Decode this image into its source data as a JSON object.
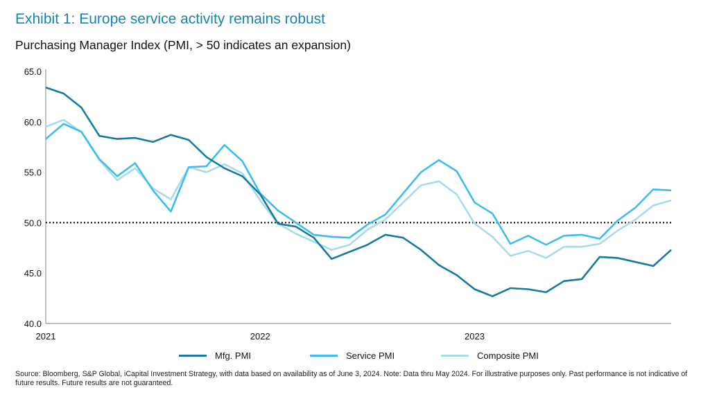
{
  "title": "Exhibit 1: Europe service activity remains robust",
  "subtitle": "Purchasing Manager Index (PMI, > 50 indicates an expansion)",
  "source": "Source: Bloomberg, S&P Global, iCapital Investment Strategy, with data based on availability as of June 3, 2024. Note: Data thru May 2024. For illustrative purposes only. Past performance is not indicative of future results. Future results are not guaranteed.",
  "chart_data": {
    "type": "line",
    "title": "Exhibit 1: Europe service activity remains robust",
    "subtitle": "Purchasing Manager Index (PMI, > 50 indicates an expansion)",
    "xlabel": "",
    "ylabel": "",
    "x_start": "2021-01",
    "x_frequency": "monthly",
    "x_ticks": [
      "2021",
      "2022",
      "2023"
    ],
    "y_ticks": [
      "40.0",
      "45.0",
      "50.0",
      "55.0",
      "60.0",
      "65.0"
    ],
    "ylim": [
      40,
      65
    ],
    "reference_line": {
      "y": 50,
      "style": "dotted",
      "color": "#000000"
    },
    "grid": false,
    "legend": "bottom",
    "series": [
      {
        "name": "Mfg. PMI",
        "color": "#17799f",
        "values": [
          63.4,
          62.8,
          61.4,
          58.6,
          58.3,
          58.4,
          58.0,
          58.7,
          58.2,
          56.5,
          55.4,
          54.6,
          52.8,
          49.9,
          49.6,
          48.5,
          46.4,
          47.1,
          47.8,
          48.8,
          48.5,
          47.3,
          45.8,
          44.8,
          43.4,
          42.7,
          43.5,
          43.4,
          43.1,
          44.2,
          44.4,
          46.6,
          46.5,
          46.1,
          45.7,
          47.3
        ]
      },
      {
        "name": "Service PMI",
        "color": "#3cbcef",
        "values": [
          58.3,
          59.8,
          59.0,
          56.3,
          54.6,
          55.9,
          53.2,
          51.1,
          55.5,
          55.6,
          57.7,
          56.1,
          52.9,
          51.2,
          50.0,
          48.8,
          48.6,
          48.5,
          49.8,
          50.8,
          52.9,
          55.0,
          56.2,
          55.1,
          52.0,
          50.9,
          47.9,
          48.7,
          47.8,
          48.7,
          48.8,
          48.4,
          50.2,
          51.5,
          53.3,
          53.2
        ]
      },
      {
        "name": "Composite PMI",
        "color": "#a5dde7",
        "values": [
          59.5,
          60.2,
          59.0,
          56.2,
          54.2,
          55.4,
          53.4,
          52.3,
          55.5,
          55.0,
          55.8,
          54.9,
          52.2,
          49.9,
          48.9,
          48.1,
          47.3,
          47.8,
          49.3,
          50.3,
          52.0,
          53.7,
          54.1,
          52.8,
          49.9,
          48.6,
          46.7,
          47.2,
          46.5,
          47.6,
          47.6,
          47.9,
          49.2,
          50.3,
          51.7,
          52.2
        ]
      }
    ]
  }
}
